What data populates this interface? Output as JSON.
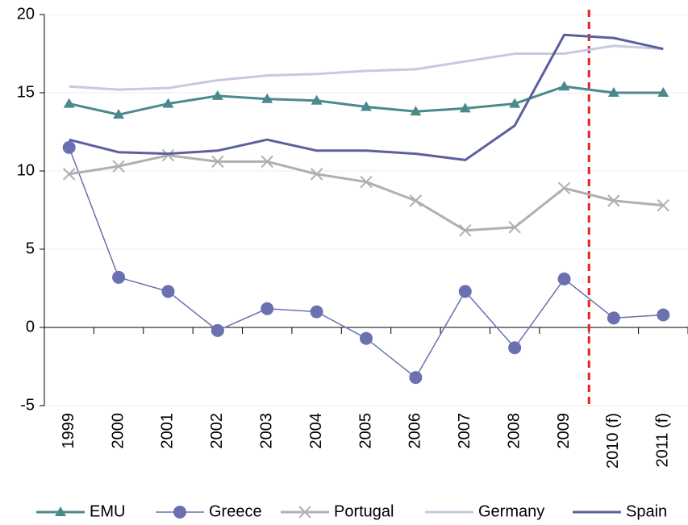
{
  "chart_data": {
    "type": "line",
    "categories": [
      "1999",
      "2000",
      "2001",
      "2002",
      "2003",
      "2004",
      "2005",
      "2006",
      "2007",
      "2008",
      "2009",
      "2010 (f)",
      "2011 (f)"
    ],
    "series": [
      {
        "name": "EMU",
        "color": "#4a8a8c",
        "marker": "triangle",
        "line_width": 3,
        "values": [
          14.3,
          13.6,
          14.3,
          14.8,
          14.6,
          14.5,
          14.1,
          13.8,
          14.0,
          14.3,
          15.4,
          15.0,
          15.0
        ]
      },
      {
        "name": "Greece",
        "color": "#6b70b0",
        "marker": "circle",
        "line_width": 1.5,
        "values": [
          11.5,
          3.2,
          2.3,
          -0.2,
          1.2,
          1.0,
          -0.7,
          -3.2,
          2.3,
          -1.3,
          3.1,
          0.6,
          0.8
        ]
      },
      {
        "name": "Portugal",
        "color": "#b0b0b0",
        "marker": "x",
        "line_width": 3,
        "values": [
          9.8,
          10.3,
          11.0,
          10.6,
          10.6,
          9.8,
          9.3,
          8.1,
          6.2,
          6.4,
          8.9,
          8.1,
          7.8
        ]
      },
      {
        "name": "Germany",
        "color": "#c8c8e0",
        "marker": "none",
        "line_width": 3,
        "values": [
          15.4,
          15.2,
          15.3,
          15.8,
          16.1,
          16.2,
          16.4,
          16.5,
          17.0,
          17.5,
          17.5,
          18.0,
          17.8
        ]
      },
      {
        "name": "Spain",
        "color": "#5c5fa0",
        "marker": "none",
        "line_width": 3,
        "values": [
          12.0,
          11.2,
          11.1,
          11.3,
          12.0,
          11.3,
          11.3,
          11.1,
          10.7,
          12.9,
          18.7,
          18.5,
          17.8
        ]
      }
    ],
    "ylim": [
      -5,
      20
    ],
    "yticks": [
      -5,
      0,
      5,
      10,
      15,
      20
    ],
    "grid": true,
    "divider_after": "2009",
    "divider_color": "#e8211e",
    "legend": "bottom"
  }
}
